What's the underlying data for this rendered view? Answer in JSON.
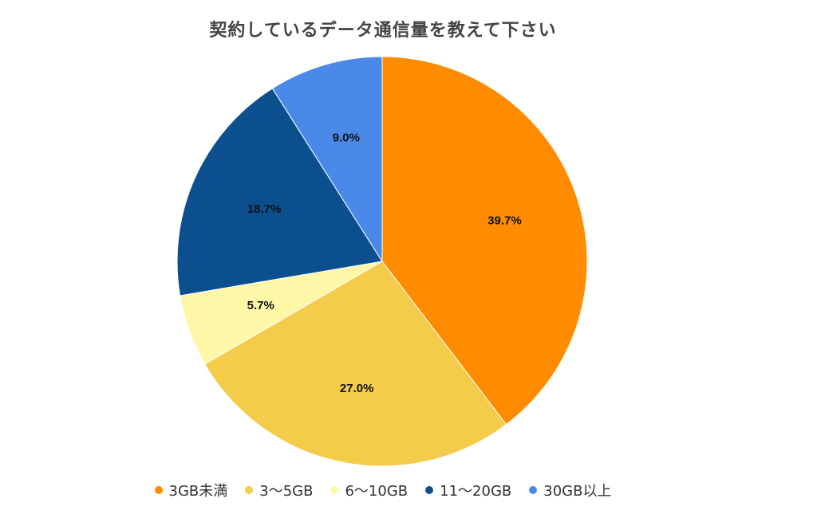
{
  "chart_data": {
    "type": "pie",
    "title": "契約しているデータ通信量を教えて下さい",
    "categories": [
      "3GB未満",
      "3〜5GB",
      "6〜10GB",
      "11〜20GB",
      "30GB以上"
    ],
    "values": [
      39.7,
      27.0,
      5.7,
      18.7,
      9.0
    ],
    "value_labels": [
      "39.7%",
      "27.0%",
      "5.7%",
      "18.7%",
      "9.0%"
    ],
    "colors": [
      "#ff8c00",
      "#f5cb4a",
      "#fff7a8",
      "#0c4f8f",
      "#4a89e8"
    ],
    "legend_position": "bottom",
    "start_angle": "top",
    "direction": "clockwise"
  }
}
